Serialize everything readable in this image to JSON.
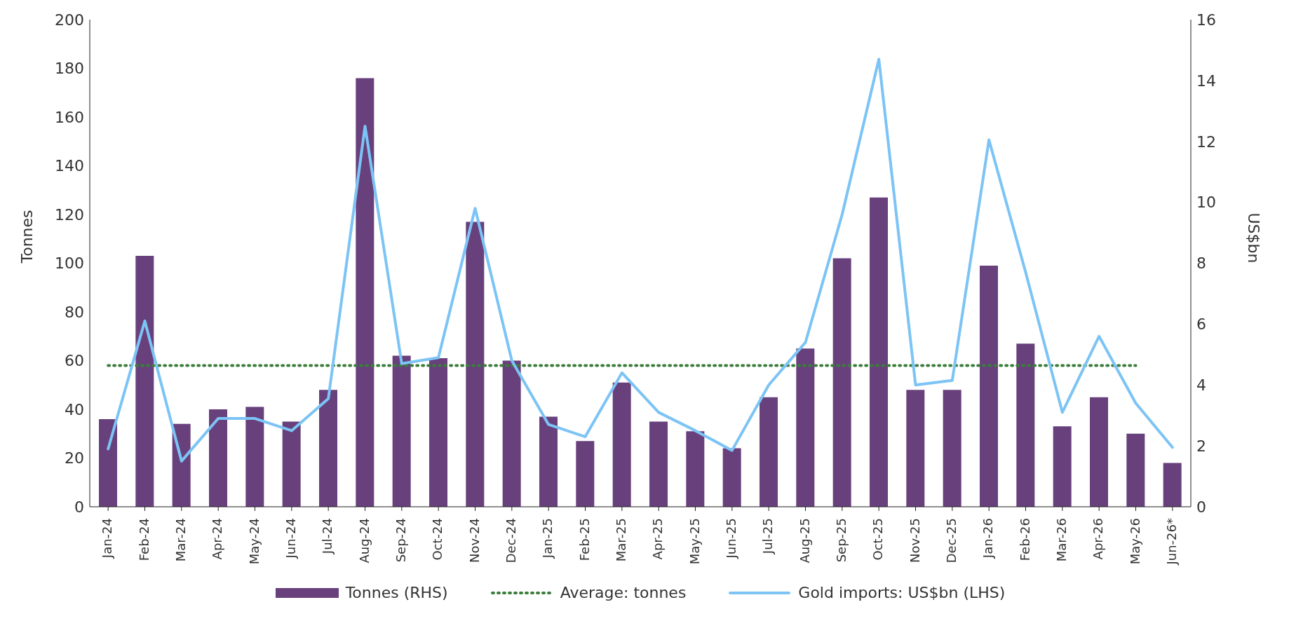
{
  "chart_data": {
    "type": "bar",
    "ylabel": "Tonnes",
    "y2label": "US$bn",
    "categories": [
      "Jan-24",
      "Feb-24",
      "Mar-24",
      "Apr-24",
      "May-24",
      "Jun-24",
      "Jul-24",
      "Aug-24",
      "Sep-24",
      "Oct-24",
      "Nov-24",
      "Dec-24",
      "Jan-25",
      "Feb-25",
      "Mar-25",
      "Apr-25",
      "May-25",
      "Jun-25",
      "Jul-25",
      "Aug-25",
      "Sep-25",
      "Oct-25",
      "Nov-25",
      "Dec-25",
      "Jan-26",
      "Feb-26",
      "Mar-26",
      "Apr-26",
      "May-26",
      "Jun-26*"
    ],
    "series": [
      {
        "name": "Tonnes (RHS)",
        "color": "#67407c",
        "values": [
          36,
          103,
          34,
          40,
          41,
          35,
          48,
          176,
          62,
          61,
          117,
          60,
          37,
          27,
          51,
          35,
          31,
          24,
          45,
          65,
          102,
          127,
          48,
          48,
          99,
          67,
          33,
          45,
          30,
          18
        ]
      },
      {
        "name": "Average: tonnes",
        "type": "line",
        "line_style": "dotted",
        "color": "#3b7d3b",
        "values": [
          58,
          58,
          58,
          58,
          58,
          58,
          58,
          58,
          58,
          58,
          58,
          58,
          58,
          58,
          58,
          58,
          58,
          58,
          58,
          58,
          58,
          58,
          58,
          58,
          58,
          58,
          58,
          58,
          58,
          null
        ]
      },
      {
        "name": "Gold imports: US$bn (LHS)",
        "type": "line",
        "line_style": "solid",
        "axis": "y2",
        "color": "#7cc4f5",
        "values": [
          1.9,
          6.1,
          1.5,
          2.9,
          2.9,
          2.5,
          3.55,
          12.5,
          4.7,
          4.9,
          9.8,
          4.8,
          2.7,
          2.3,
          4.4,
          3.1,
          2.5,
          1.85,
          4.0,
          5.4,
          9.6,
          14.7,
          4.0,
          4.15,
          12.05,
          7.7,
          3.1,
          5.6,
          3.4,
          1.95
        ]
      }
    ],
    "ylim": [
      0,
      200
    ],
    "yticks": [
      0,
      20,
      40,
      60,
      80,
      100,
      120,
      140,
      160,
      180,
      200
    ],
    "y2lim": [
      0,
      16
    ],
    "y2ticks": [
      0,
      2,
      4,
      6,
      8,
      10,
      12,
      14,
      16
    ],
    "marker": "none",
    "legend": "bottom"
  }
}
